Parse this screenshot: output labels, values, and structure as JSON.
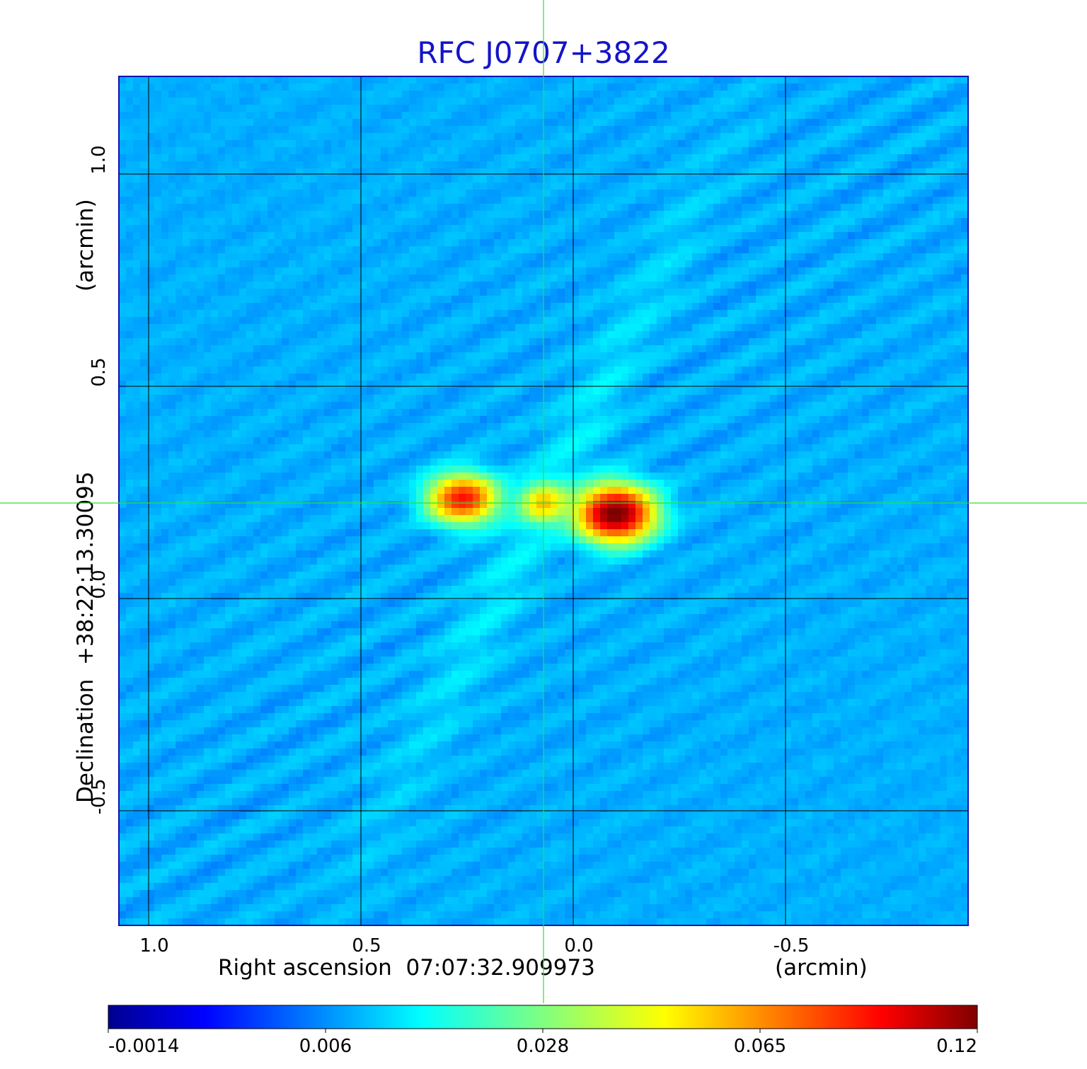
{
  "chart_data": {
    "type": "heatmap",
    "title": "RFC J0707+3822",
    "xlabel_left": "Right ascension  07:07:32.909973",
    "xlabel_unit": "(arcmin)",
    "ylabel_left": "Declination  +38:22:13.30095",
    "ylabel_unit": "(arcmin)",
    "x_ticks": [
      1.0,
      0.5,
      0.0,
      -0.5
    ],
    "x_tick_labels": [
      "1.0",
      "0.5",
      "0.0",
      "-0.5"
    ],
    "y_ticks": [
      1.0,
      0.5,
      0.0,
      -0.5
    ],
    "y_tick_labels": [
      "1.0",
      "0.5",
      "0.0",
      "-0.5"
    ],
    "xlim": [
      1.07,
      -0.93
    ],
    "ylim": [
      -0.77,
      1.23
    ],
    "x_reversed": true,
    "grid": true,
    "crosshair": {
      "x": 0.07,
      "y": 0.225,
      "color": "#2ee22e"
    },
    "colormap": "jet",
    "colorbar": {
      "ticks": [
        "-0.0014",
        "0.006",
        "0.028",
        "0.065",
        "0.12"
      ],
      "min": -0.0014,
      "max": 0.12
    },
    "components": [
      {
        "label": "west blob",
        "x": 0.26,
        "y": 0.235,
        "peak": 0.08,
        "sx": 0.05,
        "sy": 0.035
      },
      {
        "label": "central knot",
        "x": 0.07,
        "y": 0.225,
        "peak": 0.04,
        "sx": 0.035,
        "sy": 0.03
      },
      {
        "label": "east blob",
        "x": -0.1,
        "y": 0.2,
        "peak": 0.12,
        "sx": 0.055,
        "sy": 0.04
      }
    ]
  }
}
